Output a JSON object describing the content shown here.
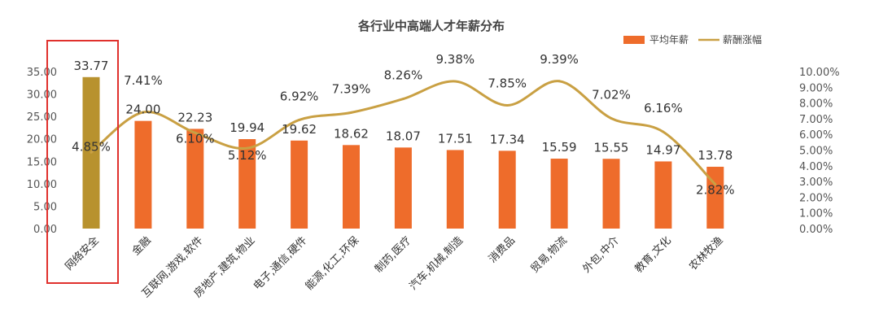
{
  "colors": {
    "bar": "#ee6c2b",
    "bar_highlight": "#b8922e",
    "line": "#c9a043",
    "highlight_box": "#e0312d",
    "background": "#ffffff"
  },
  "legend": {
    "bar_label": "平均年薪",
    "line_label": "薪酬涨幅",
    "position": "top-right"
  },
  "chart_data": {
    "type": "bar",
    "title": "各行业中高端人才年薪分布",
    "categories": [
      "网络安全",
      "金融",
      "互联网,游戏,软件",
      "房地产,建筑,物业",
      "电子,通信,硬件",
      "能源,化工,环保",
      "制药,医疗",
      "汽车,机械,制造",
      "消费品",
      "贸易,物流",
      "外包,中介",
      "教育,文化",
      "农林牧渔"
    ],
    "category_labels_visible": [
      "网络安全",
      "金融",
      "互联网,游戏,软件",
      "房地产,建筑,物业",
      "电子,通信,硬件",
      "能源,化工,环保",
      "制药,医疗",
      "汽车,机械,制造",
      "消费品",
      "贸易,物流",
      "外包,中介",
      "教育,文化",
      "农林牧渔"
    ],
    "series": [
      {
        "name": "平均年薪",
        "type": "bar",
        "axis": "left",
        "values": [
          33.77,
          24.0,
          22.23,
          19.94,
          19.62,
          18.62,
          18.07,
          17.51,
          17.34,
          15.59,
          15.55,
          14.97,
          13.78
        ],
        "labels": [
          "33.77",
          "24.00",
          "22.23",
          "19.94",
          "19.62",
          "18.62",
          "18.07",
          "17.51",
          "17.34",
          "15.59",
          "15.55",
          "14.97",
          "13.78"
        ]
      },
      {
        "name": "薪酬涨幅",
        "type": "line",
        "axis": "right",
        "values": [
          4.85,
          7.41,
          6.1,
          5.12,
          6.92,
          7.39,
          8.26,
          9.38,
          7.85,
          9.39,
          7.02,
          6.16,
          2.82
        ],
        "labels": [
          "4.85%",
          "7.41%",
          "6.10%",
          "5.12%",
          "6.92%",
          "7.39%",
          "8.26%",
          "9.38%",
          "7.85%",
          "9.39%",
          "7.02%",
          "6.16%",
          "2.82%"
        ]
      }
    ],
    "y_left": {
      "ylim": [
        0,
        35
      ],
      "ticks": [
        "0.00",
        "5.00",
        "10.00",
        "15.00",
        "20.00",
        "25.00",
        "30.00",
        "35.00"
      ]
    },
    "y_right": {
      "ylim": [
        0,
        10
      ],
      "ticks": [
        "0.00%",
        "1.00%",
        "2.00%",
        "3.00%",
        "4.00%",
        "5.00%",
        "6.00%",
        "7.00%",
        "8.00%",
        "9.00%",
        "10.00%"
      ]
    },
    "grid": false,
    "highlighted_category": "网络安全"
  }
}
